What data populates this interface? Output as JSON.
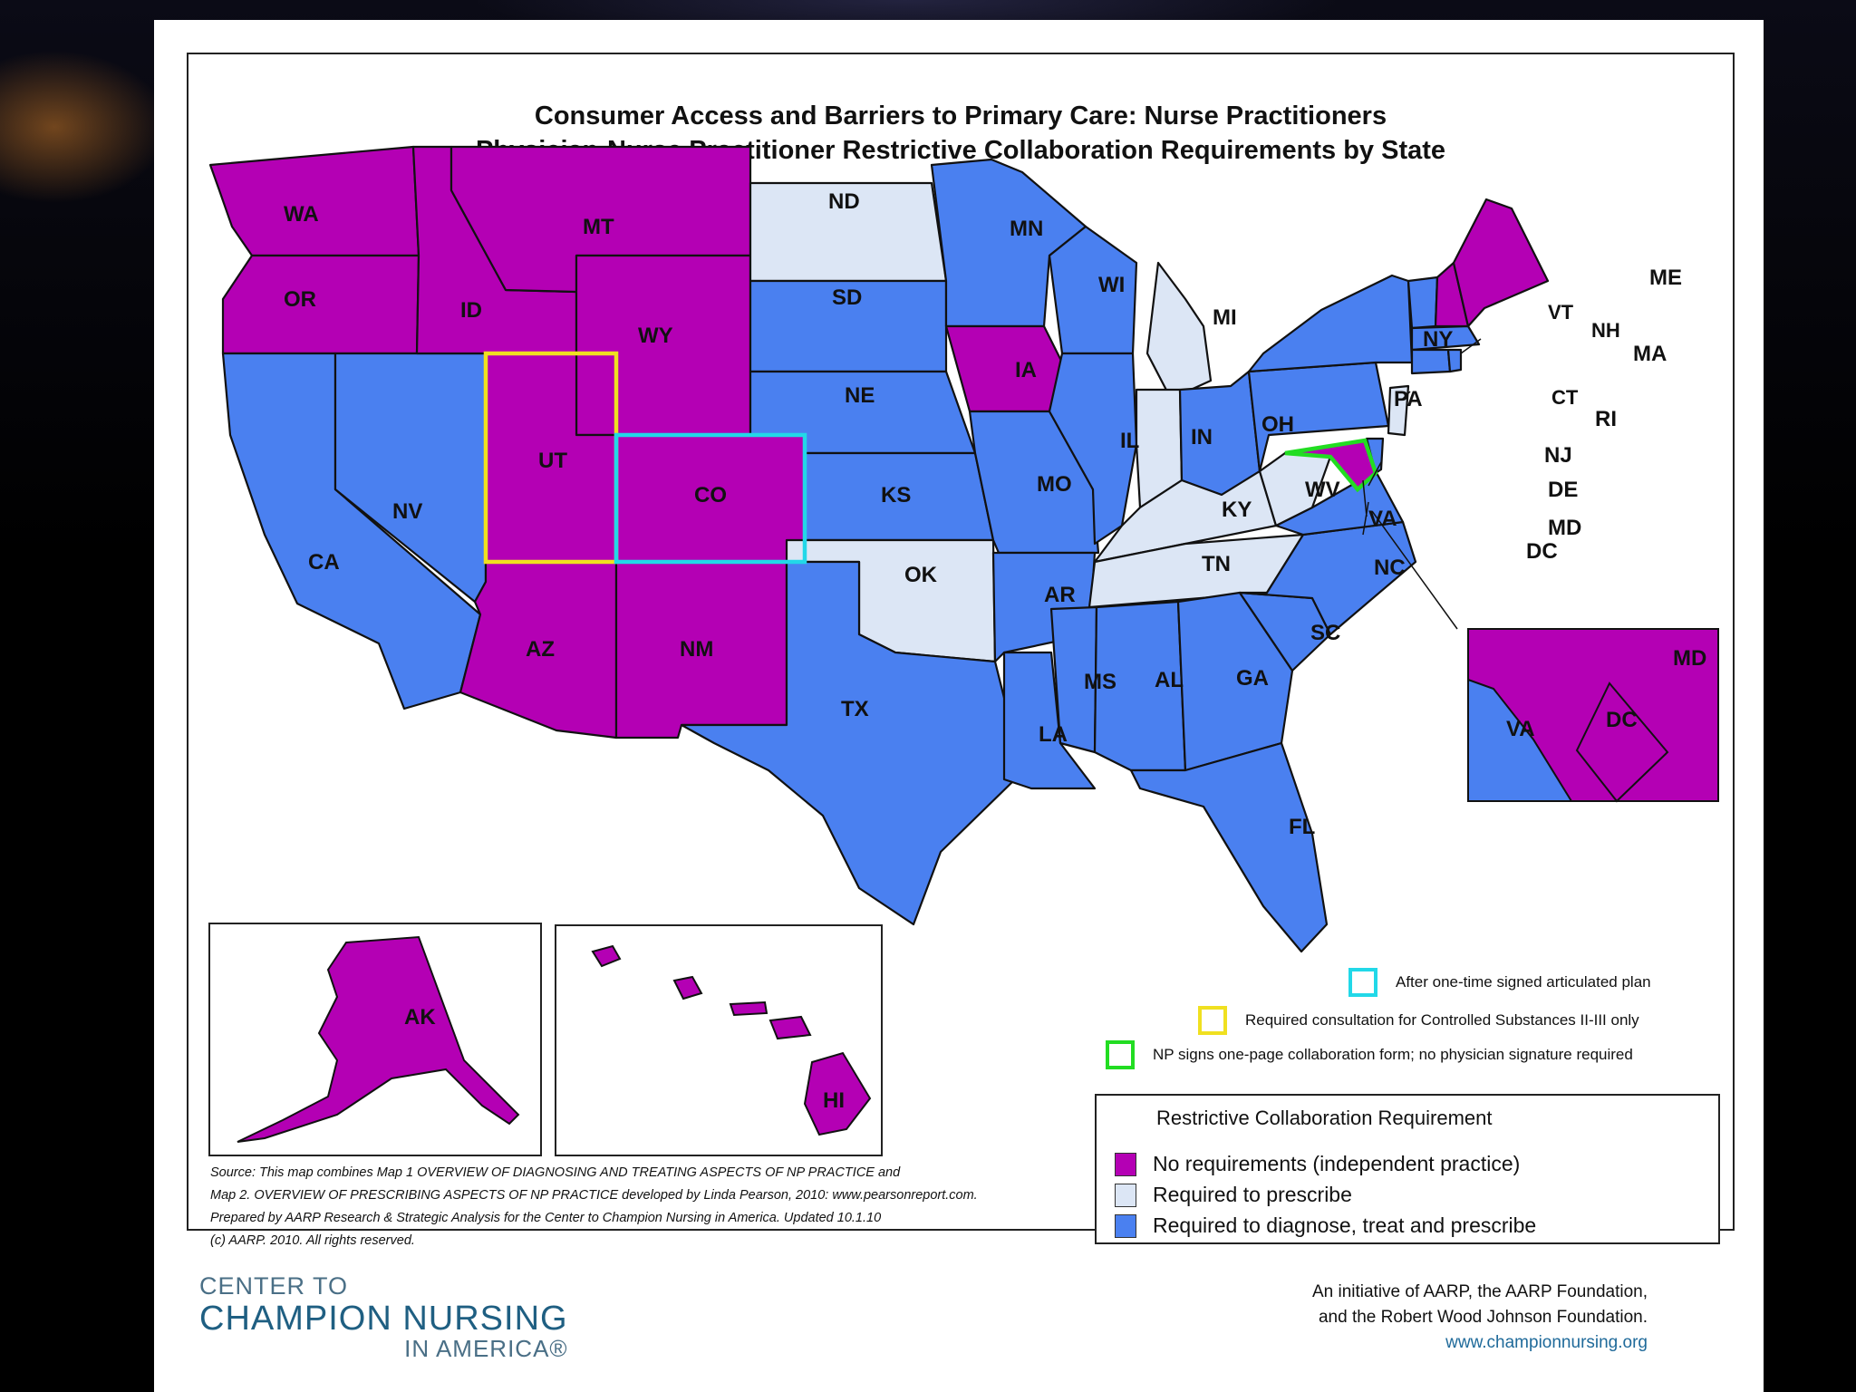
{
  "title_line1": "Consumer Access and Barriers to Primary Care: Nurse Practitioners",
  "title_line2": "Physician-Nurse Practitioner Restrictive Collaboration Requirements by State",
  "colors": {
    "no_requirements": "#b400b4",
    "required_to_prescribe": "#dce6f5",
    "required_all": "#4a80f0",
    "outline_co": "#22d8e8",
    "outline_ut": "#f0e020",
    "outline_md": "#22dd22"
  },
  "states": {
    "WA": "no_requirements",
    "OR": "no_requirements",
    "ID": "no_requirements",
    "MT": "no_requirements",
    "WY": "no_requirements",
    "UT": "no_requirements",
    "CO": "no_requirements",
    "AZ": "no_requirements",
    "NM": "no_requirements",
    "IA": "no_requirements",
    "ME": "no_requirements",
    "NH": "no_requirements",
    "MD": "no_requirements",
    "DC": "no_requirements",
    "AK": "no_requirements",
    "HI": "no_requirements",
    "ND": "required_to_prescribe",
    "MI": "required_to_prescribe",
    "IN": "required_to_prescribe",
    "KY": "required_to_prescribe",
    "TN": "required_to_prescribe",
    "WV": "required_to_prescribe",
    "OK": "required_to_prescribe",
    "NJ": "required_to_prescribe",
    "CA": "required_all",
    "NV": "required_all",
    "SD": "required_all",
    "NE": "required_all",
    "KS": "required_all",
    "TX": "required_all",
    "MN": "required_all",
    "WI": "required_all",
    "MO": "required_all",
    "AR": "required_all",
    "LA": "required_all",
    "IL": "required_all",
    "MS": "required_all",
    "AL": "required_all",
    "GA": "required_all",
    "FL": "required_all",
    "SC": "required_all",
    "NC": "required_all",
    "VA": "required_all",
    "OH": "required_all",
    "PA": "required_all",
    "NY": "required_all",
    "VT": "required_all",
    "MA": "required_all",
    "CT": "required_all",
    "RI": "required_all",
    "DE": "required_all"
  },
  "labels": {
    "WA": "WA",
    "OR": "OR",
    "CA": "CA",
    "NV": "NV",
    "ID": "ID",
    "MT": "MT",
    "WY": "WY",
    "UT": "UT",
    "CO": "CO",
    "AZ": "AZ",
    "NM": "NM",
    "ND": "ND",
    "SD": "SD",
    "NE": "NE",
    "KS": "KS",
    "OK": "OK",
    "TX": "TX",
    "MN": "MN",
    "IA": "IA",
    "MO": "MO",
    "AR": "AR",
    "LA": "LA",
    "WI": "WI",
    "IL": "IL",
    "MI": "MI",
    "IN": "IN",
    "KY": "KY",
    "TN": "TN",
    "MS": "MS",
    "AL": "AL",
    "GA": "GA",
    "FL": "FL",
    "SC": "SC",
    "NC": "NC",
    "VA": "VA",
    "WV": "WV",
    "OH": "OH",
    "PA": "PA",
    "NY": "NY",
    "VT": "VT",
    "NH": "NH",
    "ME": "ME",
    "MA": "MA",
    "CT": "CT",
    "RI": "RI",
    "NJ": "NJ",
    "DE": "DE",
    "MD": "MD",
    "DC": "DC",
    "AK": "AK",
    "HI": "HI"
  },
  "notes": {
    "cyan": "After one-time signed articulated plan",
    "yellow": "Required consultation for Controlled Substances II-III only",
    "green": "NP signs one-page collaboration form; no physician signature required"
  },
  "legend": {
    "title": "Restrictive Collaboration Requirement",
    "no_requirements": "No requirements (independent practice)",
    "required_to_prescribe": "Required to prescribe",
    "required_all": "Required to diagnose, treat and prescribe"
  },
  "source": {
    "line1": "Source: This map combines Map 1 OVERVIEW OF DIAGNOSING AND TREATING ASPECTS OF NP PRACTICE and",
    "line2": "Map 2. OVERVIEW OF PRESCRIBING ASPECTS OF NP PRACTICE developed by Linda Pearson, 2010: www.pearsonreport.com.",
    "line3": "Prepared by AARP Research & Strategic Analysis for the Center to Champion Nursing in America. Updated 10.1.10",
    "line4": "(c) AARP. 2010. All rights reserved."
  },
  "footer": {
    "logo_line1": "CENTER TO",
    "logo_line2": "CHAMPION NURSING",
    "logo_line3": "IN AMERICA®",
    "initiative_line1": "An initiative of AARP, the AARP Foundation,",
    "initiative_line2": "and the Robert Wood Johnson Foundation.",
    "url": "www.championnursing.org"
  }
}
